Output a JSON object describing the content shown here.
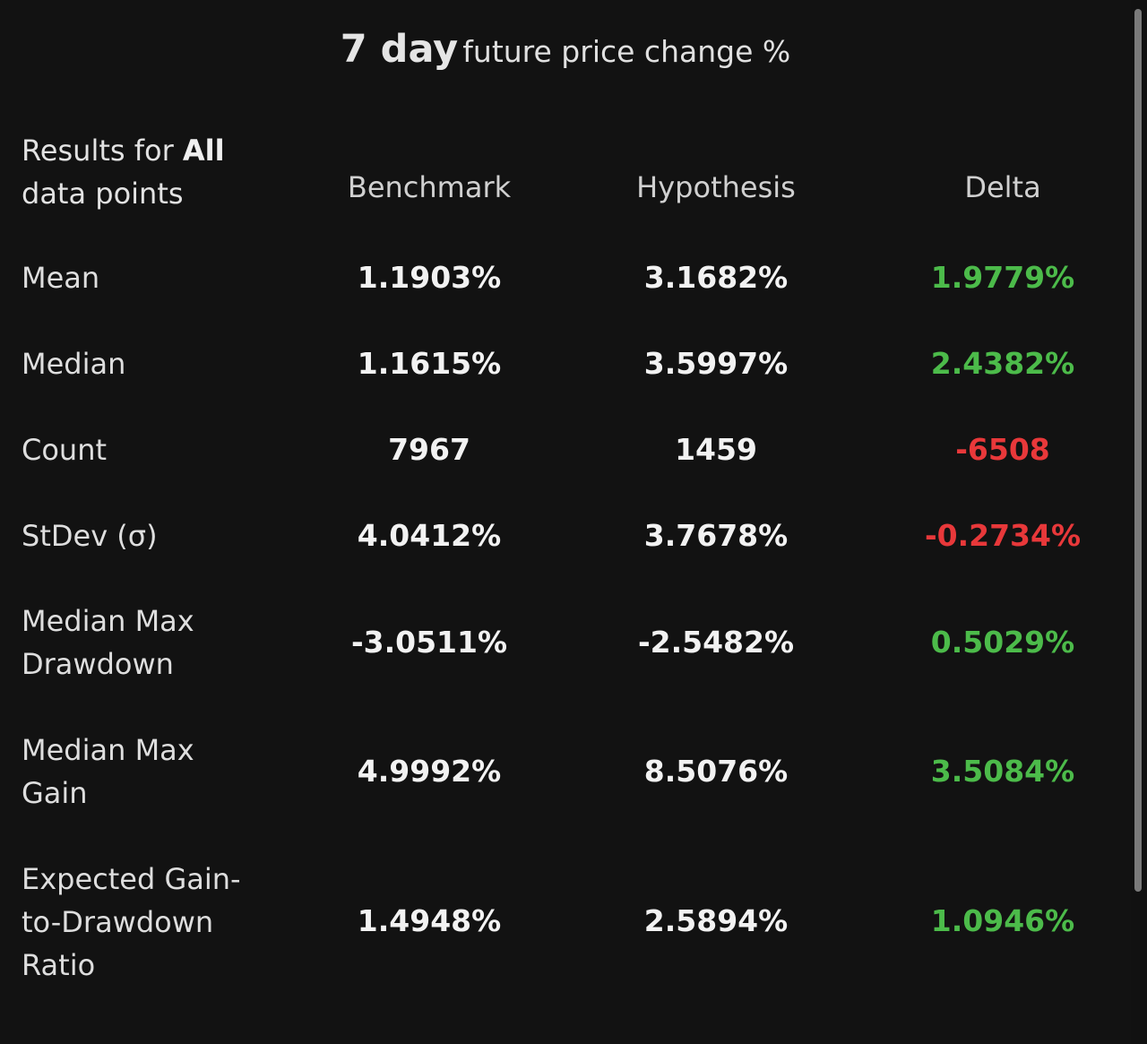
{
  "title": {
    "bold": "7 day",
    "rest": "future price change %"
  },
  "header": {
    "label_prefix": "Results for ",
    "label_bold": "All",
    "label_suffix": "data points",
    "columns": [
      "Benchmark",
      "Hypothesis",
      "Delta"
    ]
  },
  "rows": [
    {
      "label": "Mean",
      "benchmark": "1.1903%",
      "hypothesis": "3.1682%",
      "delta": "1.9779%"
    },
    {
      "label": "Median",
      "benchmark": "1.1615%",
      "hypothesis": "3.5997%",
      "delta": "2.4382%"
    },
    {
      "label": "Count",
      "benchmark": "7967",
      "hypothesis": "1459",
      "delta": "-6508"
    },
    {
      "label": "StDev (σ)",
      "benchmark": "4.0412%",
      "hypothesis": "3.7678%",
      "delta": "-0.2734%"
    },
    {
      "label_line1": "Median Max",
      "label_line2": "Drawdown",
      "benchmark": "-3.0511%",
      "hypothesis": "-2.5482%",
      "delta": "0.5029%"
    },
    {
      "label_line1": "Median Max",
      "label_line2": "Gain",
      "benchmark": "4.9992%",
      "hypothesis": "8.5076%",
      "delta": "3.5084%"
    },
    {
      "label_line1": "Expected Gain-",
      "label_line2": "to-Drawdown",
      "label_line3": "Ratio",
      "benchmark": "1.4948%",
      "hypothesis": "2.5894%",
      "delta": "1.0946%"
    }
  ],
  "colors": {
    "background": "#121212",
    "positive": "#4cbb4a",
    "negative": "#e8383a",
    "text": "#f2f2f2"
  }
}
